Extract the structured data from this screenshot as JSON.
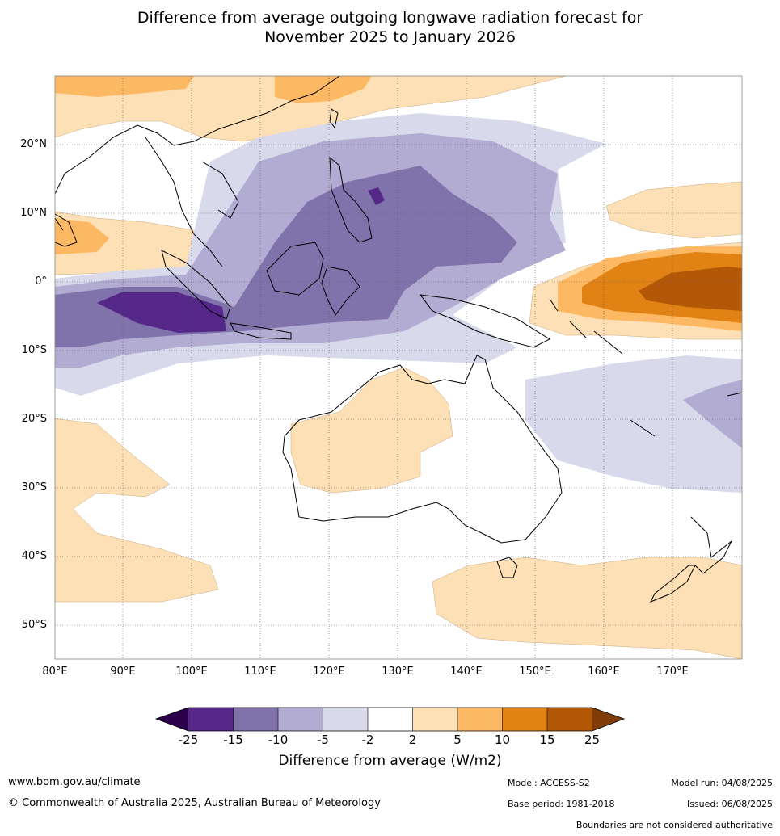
{
  "title_line1": "Difference from average outgoing longwave radiation forecast for",
  "title_line2": "November 2025 to January 2026",
  "lat_labels": [
    "20°N",
    "10°N",
    "0°",
    "10°S",
    "20°S",
    "30°S",
    "40°S",
    "50°S"
  ],
  "lon_labels": [
    "80°E",
    "90°E",
    "100°E",
    "110°E",
    "120°E",
    "130°E",
    "140°E",
    "150°E",
    "160°E",
    "170°E"
  ],
  "colorbar": {
    "title": "Difference from average (W/m2)",
    "ticks": [
      "-25",
      "-15",
      "-10",
      "-5",
      "-2",
      "2",
      "5",
      "10",
      "15",
      "25"
    ],
    "colors": [
      "#2d004b",
      "#542788",
      "#8073ac",
      "#b2abd2",
      "#d8daeb",
      "#ffffff",
      "#fee0b6",
      "#fdb863",
      "#e08214",
      "#b35806",
      "#7f3b08"
    ]
  },
  "footer": {
    "website": "www.bom.gov.au/climate",
    "copyright": "© Commonwealth of Australia 2025, Australian Bureau of Meteorology",
    "model": "Model: ACCESS-S2",
    "base_period": "Base period: 1981-2018",
    "model_run": "Model run: 04/08/2025",
    "issued": "Issued: 06/08/2025",
    "disclaimer": "Boundaries are not considered authoritative"
  }
}
